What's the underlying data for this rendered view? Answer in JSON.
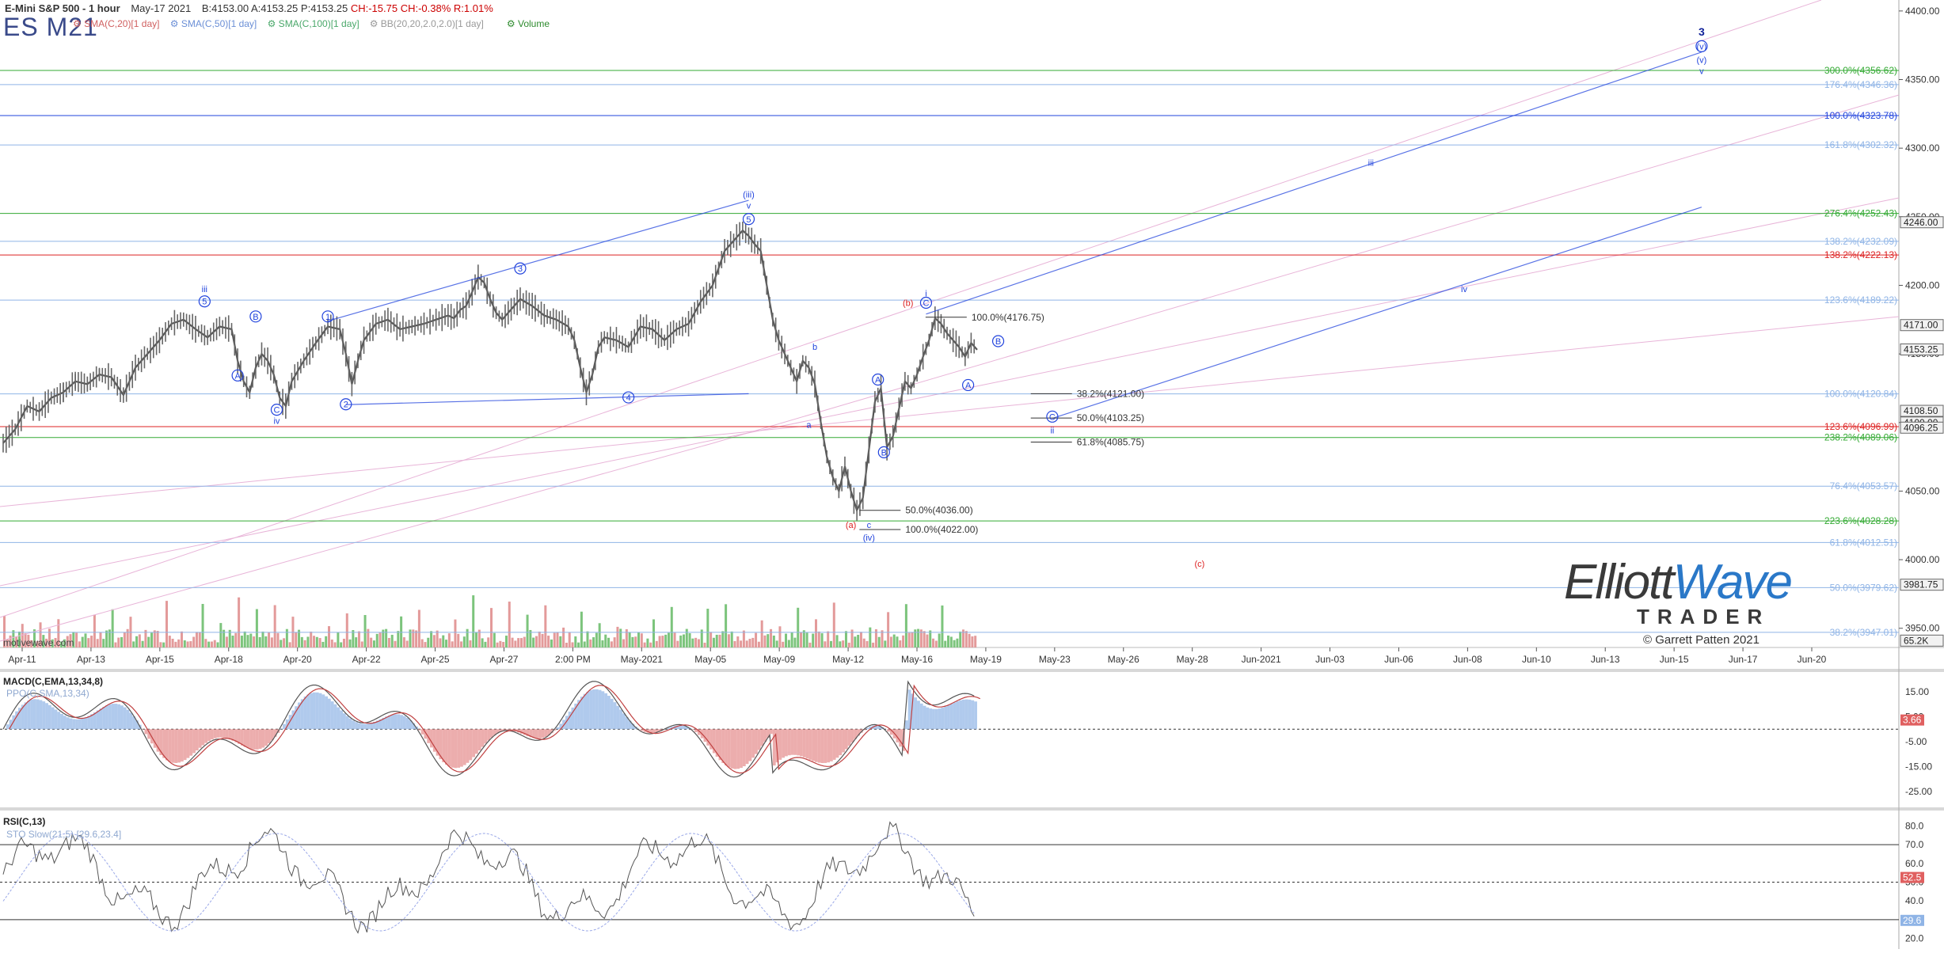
{
  "header": {
    "title": "E-Mini S&P 500 - 1 hour",
    "date": "May-17 2021",
    "bid": "B:4153.00",
    "ask": "A:4153.25",
    "price": "P:4153.25",
    "change": "CH:-15.75",
    "change_pct": "CH:-0.38%",
    "range": "R:1.01%",
    "symbol": "ES M21"
  },
  "indicators": [
    {
      "label": "SMA(C,20)[1 day]",
      "color": "#d06060"
    },
    {
      "label": "SMA(C,50)[1 day]",
      "color": "#6b8fd6"
    },
    {
      "label": "SMA(C,100)[1 day]",
      "color": "#4aa86a"
    },
    {
      "label": "BB(20,20,2.0,2.0)[1 day]",
      "color": "#999999"
    },
    {
      "label": "Volume",
      "color": "#2e8b2e"
    }
  ],
  "watermark": "motivewave.com",
  "logo": {
    "text1": "Elliott",
    "text2": "Wave",
    "text3": "TRADER",
    "copyright": "© Garrett Patten 2021"
  },
  "colors": {
    "green": "#33aa33",
    "red": "#dd2222",
    "blue": "#2244dd",
    "lightblue": "#8fb4e6",
    "price": "#555555",
    "pink": "#e8b4d8"
  },
  "chart_data": [
    {
      "type": "line",
      "title": "E-Mini S&P 500 - 1 hour",
      "x_ticks": [
        "Apr-11",
        "Apr-13",
        "Apr-15",
        "Apr-18",
        "Apr-20",
        "Apr-22",
        "Apr-25",
        "Apr-27",
        "2:00 PM",
        "May-2021",
        "May-05",
        "May-09",
        "May-12",
        "May-16",
        "May-19",
        "May-23",
        "May-26",
        "May-28",
        "Jun-2021",
        "Jun-03",
        "Jun-06",
        "Jun-08",
        "Jun-10",
        "Jun-13",
        "Jun-15",
        "Jun-17",
        "Jun-20"
      ],
      "y_ticks": [
        4400,
        4350,
        4300,
        4250,
        4200,
        4150,
        4100,
        4050,
        4000,
        3950
      ],
      "ylim": [
        3936,
        4408
      ],
      "price_path": [
        [
          0,
          4085
        ],
        [
          4,
          4095
        ],
        [
          8,
          4112
        ],
        [
          12,
          4108
        ],
        [
          16,
          4118
        ],
        [
          20,
          4122
        ],
        [
          24,
          4130
        ],
        [
          28,
          4128
        ],
        [
          32,
          4135
        ],
        [
          36,
          4133
        ],
        [
          40,
          4120
        ],
        [
          44,
          4140
        ],
        [
          48,
          4150
        ],
        [
          52,
          4160
        ],
        [
          56,
          4172
        ],
        [
          60,
          4175
        ],
        [
          64,
          4168
        ],
        [
          68,
          4162
        ],
        [
          72,
          4170
        ],
        [
          76,
          4168
        ],
        [
          78,
          4145
        ],
        [
          80,
          4130
        ],
        [
          82,
          4122
        ],
        [
          84,
          4140
        ],
        [
          86,
          4150
        ],
        [
          88,
          4145
        ],
        [
          90,
          4135
        ],
        [
          92,
          4118
        ],
        [
          94,
          4112
        ],
        [
          96,
          4130
        ],
        [
          100,
          4145
        ],
        [
          104,
          4158
        ],
        [
          108,
          4170
        ],
        [
          112,
          4168
        ],
        [
          114,
          4150
        ],
        [
          116,
          4128
        ],
        [
          118,
          4145
        ],
        [
          120,
          4160
        ],
        [
          124,
          4172
        ],
        [
          128,
          4175
        ],
        [
          132,
          4168
        ],
        [
          136,
          4170
        ],
        [
          140,
          4172
        ],
        [
          144,
          4175
        ],
        [
          148,
          4178
        ],
        [
          150,
          4176
        ],
        [
          152,
          4182
        ],
        [
          154,
          4185
        ],
        [
          156,
          4195
        ],
        [
          158,
          4206
        ],
        [
          160,
          4202
        ],
        [
          162,
          4190
        ],
        [
          164,
          4180
        ],
        [
          166,
          4175
        ],
        [
          168,
          4180
        ],
        [
          172,
          4190
        ],
        [
          176,
          4185
        ],
        [
          180,
          4178
        ],
        [
          184,
          4175
        ],
        [
          188,
          4170
        ],
        [
          190,
          4160
        ],
        [
          192,
          4140
        ],
        [
          194,
          4122
        ],
        [
          196,
          4135
        ],
        [
          198,
          4155
        ],
        [
          200,
          4162
        ],
        [
          204,
          4160
        ],
        [
          208,
          4155
        ],
        [
          212,
          4170
        ],
        [
          216,
          4168
        ],
        [
          220,
          4160
        ],
        [
          224,
          4168
        ],
        [
          228,
          4172
        ],
        [
          232,
          4188
        ],
        [
          236,
          4200
        ],
        [
          240,
          4225
        ],
        [
          244,
          4235
        ],
        [
          246,
          4240
        ],
        [
          248,
          4236
        ],
        [
          250,
          4230
        ],
        [
          252,
          4225
        ],
        [
          254,
          4200
        ],
        [
          256,
          4175
        ],
        [
          258,
          4160
        ],
        [
          260,
          4150
        ],
        [
          262,
          4140
        ],
        [
          264,
          4130
        ],
        [
          266,
          4145
        ],
        [
          268,
          4140
        ],
        [
          270,
          4128
        ],
        [
          272,
          4100
        ],
        [
          274,
          4075
        ],
        [
          276,
          4060
        ],
        [
          278,
          4050
        ],
        [
          280,
          4068
        ],
        [
          282,
          4050
        ],
        [
          284,
          4036
        ],
        [
          286,
          4045
        ],
        [
          288,
          4080
        ],
        [
          290,
          4115
        ],
        [
          292,
          4125
        ],
        [
          294,
          4082
        ],
        [
          296,
          4090
        ],
        [
          298,
          4110
        ],
        [
          300,
          4130
        ],
        [
          302,
          4125
        ],
        [
          304,
          4135
        ],
        [
          306,
          4148
        ],
        [
          308,
          4160
        ],
        [
          310,
          4176
        ],
        [
          312,
          4172
        ],
        [
          314,
          4165
        ],
        [
          316,
          4160
        ],
        [
          318,
          4155
        ],
        [
          320,
          4148
        ],
        [
          322,
          4158
        ],
        [
          324,
          4153
        ]
      ],
      "horizontal_levels": [
        {
          "label": "300.0%(4356.62)",
          "value": 4356.62,
          "color": "green"
        },
        {
          "label": "176.4%(4346.36)",
          "value": 4346.36,
          "color": "lightblue"
        },
        {
          "label": "100.0%(4323.78)",
          "value": 4323.78,
          "color": "blue"
        },
        {
          "label": "161.8%(4302.32)",
          "value": 4302.32,
          "color": "lightblue"
        },
        {
          "label": "276.4%(4252.43)",
          "value": 4252.43,
          "color": "green"
        },
        {
          "label": "138.2%(4232.09)",
          "value": 4232.09,
          "color": "lightblue"
        },
        {
          "label": "138.2%(4222.13)",
          "value": 4222.13,
          "color": "red"
        },
        {
          "label": "123.6%(4189.22)",
          "value": 4189.22,
          "color": "lightblue"
        },
        {
          "label": "100.0%(4120.84)",
          "value": 4120.84,
          "color": "lightblue"
        },
        {
          "label": "123.6%(4096.99)",
          "value": 4096.99,
          "color": "red"
        },
        {
          "label": "238.2%(4089.06)",
          "value": 4089.06,
          "color": "green"
        },
        {
          "label": "76.4%(4053.57)",
          "value": 4053.57,
          "color": "lightblue"
        },
        {
          "label": "223.6%(4028.28)",
          "value": 4028.28,
          "color": "green"
        },
        {
          "label": "61.8%(4012.51)",
          "value": 4012.51,
          "color": "lightblue"
        },
        {
          "label": "50.0%(3979.62)",
          "value": 3979.62,
          "color": "lightblue"
        },
        {
          "label": "38.2%(3947.01)",
          "value": 3947.01,
          "color": "lightblue"
        }
      ],
      "price_tags": [
        {
          "label": "4246.00",
          "value": 4246.0
        },
        {
          "label": "4171.00",
          "value": 4171.0
        },
        {
          "label": "4153.25",
          "value": 4153.25
        },
        {
          "label": "4108.50",
          "value": 4108.5
        },
        {
          "label": "4100.00",
          "value": 4100.0
        },
        {
          "label": "4096.25",
          "value": 4096.25
        },
        {
          "label": "3981.75",
          "value": 3981.75
        },
        {
          "label": "65.2K",
          "value": 3941.0
        }
      ],
      "fib_short_lines": [
        {
          "label": "100.0%(4176.75)",
          "value": 4176.75,
          "x": 310
        },
        {
          "label": "38.2%(4121.00)",
          "value": 4121.0,
          "x": 345
        },
        {
          "label": "50.0%(4103.25)",
          "value": 4103.25,
          "x": 345
        },
        {
          "label": "61.8%(4085.75)",
          "value": 4085.75,
          "x": 345
        },
        {
          "label": "50.0%(4036.00)",
          "value": 4036.0,
          "x": 288
        },
        {
          "label": "100.0%(4022.00)",
          "value": 4022.0,
          "x": 288
        }
      ],
      "wave_labels": [
        {
          "t": "iii",
          "x": 67,
          "v": 4195,
          "c": "blue"
        },
        {
          "t": "5",
          "x": 67,
          "v": 4186,
          "c": "blue",
          "circle": true
        },
        {
          "t": "B",
          "x": 84,
          "v": 4175,
          "c": "blue",
          "circle": true
        },
        {
          "t": "A",
          "x": 78,
          "v": 4132,
          "c": "blue",
          "circle": true
        },
        {
          "t": "C",
          "x": 91,
          "v": 4107,
          "c": "blue",
          "circle": true
        },
        {
          "t": "iv",
          "x": 91,
          "v": 4099,
          "c": "blue"
        },
        {
          "t": "1",
          "x": 108,
          "v": 4175,
          "c": "blue",
          "circle": true
        },
        {
          "t": "2",
          "x": 114,
          "v": 4111,
          "c": "blue",
          "circle": true
        },
        {
          "t": "3",
          "x": 172,
          "v": 4210,
          "c": "blue",
          "circle": true
        },
        {
          "t": "4",
          "x": 208,
          "v": 4116,
          "c": "blue",
          "circle": true
        },
        {
          "t": "(iii)",
          "x": 248,
          "v": 4264,
          "c": "blue"
        },
        {
          "t": "v",
          "x": 248,
          "v": 4256,
          "c": "blue"
        },
        {
          "t": "5",
          "x": 248,
          "v": 4246,
          "c": "blue",
          "circle": true
        },
        {
          "t": "b",
          "x": 270,
          "v": 4153,
          "c": "blue"
        },
        {
          "t": "a",
          "x": 268,
          "v": 4096,
          "c": "blue"
        },
        {
          "t": "A",
          "x": 291,
          "v": 4129,
          "c": "blue",
          "circle": true
        },
        {
          "t": "B",
          "x": 293,
          "v": 4076,
          "c": "blue",
          "circle": true
        },
        {
          "t": "(a)",
          "x": 282,
          "v": 4023,
          "c": "red"
        },
        {
          "t": "c",
          "x": 288,
          "v": 4023,
          "c": "blue"
        },
        {
          "t": "(iv)",
          "x": 288,
          "v": 4014,
          "c": "blue"
        },
        {
          "t": "(b)",
          "x": 301,
          "v": 4185,
          "c": "red"
        },
        {
          "t": "i",
          "x": 307,
          "v": 4192,
          "c": "blue"
        },
        {
          "t": "C",
          "x": 307,
          "v": 4185,
          "c": "blue",
          "circle": true
        },
        {
          "t": "B",
          "x": 331,
          "v": 4157,
          "c": "blue",
          "circle": true
        },
        {
          "t": "A",
          "x": 321,
          "v": 4125,
          "c": "blue",
          "circle": true
        },
        {
          "t": "C",
          "x": 349,
          "v": 4102,
          "c": "blue",
          "circle": true
        },
        {
          "t": "ii",
          "x": 349,
          "v": 4092,
          "c": "blue"
        },
        {
          "t": "iii",
          "x": 455,
          "v": 4287,
          "c": "blue"
        },
        {
          "t": "iv",
          "x": 486,
          "v": 4195,
          "c": "blue"
        },
        {
          "t": "(c)",
          "x": 398,
          "v": 3995,
          "c": "red"
        },
        {
          "t": "3",
          "x": 565,
          "v": 4382,
          "c": "darkblue"
        },
        {
          "t": "(v)",
          "x": 565,
          "v": 4372,
          "c": "blue",
          "circle": true
        },
        {
          "t": "(v)",
          "x": 565,
          "v": 4362,
          "c": "blue"
        },
        {
          "t": "v",
          "x": 565,
          "v": 4354,
          "c": "blue"
        }
      ]
    },
    {
      "type": "bar",
      "title": "Volume",
      "ylim": [
        0,
        65200
      ]
    },
    {
      "type": "line",
      "title": "MACD(C,EMA,13,34,8)",
      "subtitle": "PPO(C,SMA,13,34)",
      "y_ticks": [
        15.0,
        5.0,
        -5.0,
        -15.0,
        -25.0
      ],
      "ylim": [
        -30,
        20
      ],
      "last_value": "3.66"
    },
    {
      "type": "line",
      "title": "RSI(C,13)",
      "subtitle": "STO Slow(21,5) [29.6,23.4]",
      "y_ticks": [
        80.0,
        70.0,
        60.0,
        50.0,
        40.0,
        30.0,
        20.0
      ],
      "ylim": [
        16,
        84
      ],
      "levels": [
        70,
        50,
        30
      ],
      "last_values": [
        "52.5",
        "29.6"
      ]
    }
  ]
}
